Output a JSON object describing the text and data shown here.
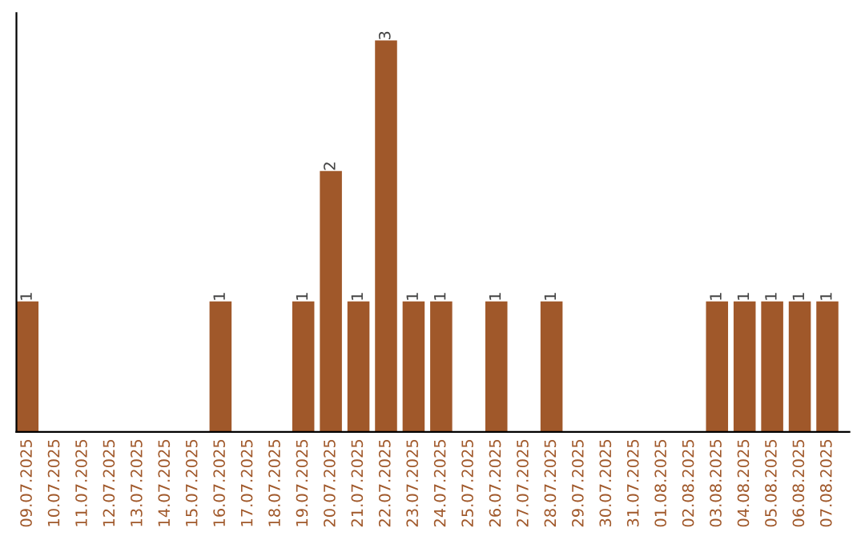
{
  "chart_data": {
    "type": "bar",
    "categories": [
      "09.07.2025",
      "10.07.2025",
      "11.07.2025",
      "12.07.2025",
      "13.07.2025",
      "14.07.2025",
      "15.07.2025",
      "16.07.2025",
      "17.07.2025",
      "18.07.2025",
      "19.07.2025",
      "20.07.2025",
      "21.07.2025",
      "22.07.2025",
      "23.07.2025",
      "24.07.2025",
      "25.07.2025",
      "26.07.2025",
      "27.07.2025",
      "28.07.2025",
      "29.07.2025",
      "30.07.2025",
      "31.07.2025",
      "01.08.2025",
      "02.08.2025",
      "03.08.2025",
      "04.08.2025",
      "05.08.2025",
      "06.08.2025",
      "07.08.2025"
    ],
    "values": [
      1,
      0,
      0,
      0,
      0,
      0,
      0,
      1,
      0,
      0,
      1,
      2,
      1,
      3,
      1,
      1,
      0,
      1,
      0,
      1,
      0,
      0,
      0,
      0,
      0,
      1,
      1,
      1,
      1,
      1
    ],
    "value_labels": [
      "1",
      null,
      null,
      null,
      null,
      null,
      null,
      "1",
      null,
      null,
      "1",
      "2",
      "1",
      "3",
      "1",
      "1",
      null,
      "1",
      null,
      "1",
      null,
      null,
      null,
      null,
      null,
      "1",
      "1",
      "1",
      "1",
      "1"
    ],
    "color": "#a0582a",
    "grid": false,
    "legend": false
  }
}
